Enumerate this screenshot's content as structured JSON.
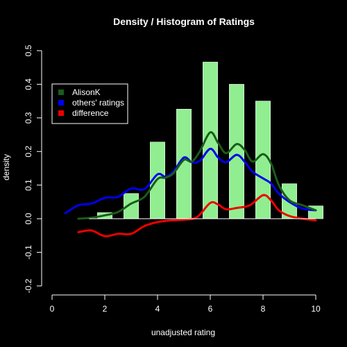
{
  "chart_data": {
    "type": "bar",
    "title": "Density / Histogram of Ratings",
    "xlabel": "unadjusted rating",
    "ylabel": "density",
    "xlim": [
      0,
      10
    ],
    "ylim": [
      -0.2,
      0.5
    ],
    "x_ticks": [
      0,
      2,
      4,
      6,
      8,
      10
    ],
    "x_tick_labels": [
      "0",
      "2",
      "4",
      "6",
      "8",
      "10"
    ],
    "y_ticks": [
      -0.2,
      -0.1,
      0.0,
      0.1,
      0.2,
      0.3,
      0.4,
      0.5
    ],
    "y_tick_labels": [
      "-0.2",
      "-0.1",
      "0.0",
      "0.1",
      "0.2",
      "0.3",
      "0.4",
      "0.5"
    ],
    "grid": false,
    "legend_position": "top-left",
    "histogram": {
      "color": "#90ee90",
      "bins": [
        {
          "x": 2,
          "value": 0.018
        },
        {
          "x": 3,
          "value": 0.075
        },
        {
          "x": 4,
          "value": 0.228
        },
        {
          "x": 5,
          "value": 0.326
        },
        {
          "x": 6,
          "value": 0.466
        },
        {
          "x": 7,
          "value": 0.4
        },
        {
          "x": 8,
          "value": 0.35
        },
        {
          "x": 9,
          "value": 0.104
        },
        {
          "x": 10,
          "value": 0.038
        }
      ]
    },
    "series": [
      {
        "name": "AlisonK",
        "color": "#1a5c1a",
        "points": [
          [
            1.0,
            0.0
          ],
          [
            1.5,
            0.003
          ],
          [
            2.0,
            0.01
          ],
          [
            2.5,
            0.02
          ],
          [
            3.0,
            0.045
          ],
          [
            3.5,
            0.065
          ],
          [
            4.0,
            0.118
          ],
          [
            4.3,
            0.122
          ],
          [
            4.6,
            0.135
          ],
          [
            5.0,
            0.175
          ],
          [
            5.3,
            0.17
          ],
          [
            5.6,
            0.2
          ],
          [
            6.0,
            0.257
          ],
          [
            6.3,
            0.225
          ],
          [
            6.6,
            0.195
          ],
          [
            7.0,
            0.222
          ],
          [
            7.3,
            0.205
          ],
          [
            7.6,
            0.17
          ],
          [
            8.0,
            0.192
          ],
          [
            8.3,
            0.165
          ],
          [
            8.6,
            0.1
          ],
          [
            9.0,
            0.055
          ],
          [
            9.5,
            0.04
          ],
          [
            10.0,
            0.025
          ]
        ]
      },
      {
        "name": "others' ratings",
        "color": "#0000ee",
        "points": [
          [
            0.5,
            0.016
          ],
          [
            1.0,
            0.04
          ],
          [
            1.5,
            0.045
          ],
          [
            2.0,
            0.062
          ],
          [
            2.5,
            0.065
          ],
          [
            3.0,
            0.09
          ],
          [
            3.5,
            0.088
          ],
          [
            4.0,
            0.132
          ],
          [
            4.3,
            0.125
          ],
          [
            4.6,
            0.14
          ],
          [
            5.0,
            0.182
          ],
          [
            5.3,
            0.168
          ],
          [
            5.6,
            0.172
          ],
          [
            6.0,
            0.208
          ],
          [
            6.3,
            0.182
          ],
          [
            6.6,
            0.168
          ],
          [
            7.0,
            0.19
          ],
          [
            7.3,
            0.17
          ],
          [
            7.6,
            0.14
          ],
          [
            8.0,
            0.12
          ],
          [
            8.3,
            0.105
          ],
          [
            8.6,
            0.075
          ],
          [
            9.0,
            0.05
          ],
          [
            9.5,
            0.03
          ],
          [
            10.0,
            0.025
          ]
        ]
      },
      {
        "name": "difference",
        "color": "#ee0000",
        "points": [
          [
            1.0,
            -0.04
          ],
          [
            1.5,
            -0.035
          ],
          [
            2.0,
            -0.052
          ],
          [
            2.5,
            -0.045
          ],
          [
            3.0,
            -0.045
          ],
          [
            3.5,
            -0.022
          ],
          [
            4.0,
            -0.01
          ],
          [
            4.5,
            -0.005
          ],
          [
            5.0,
            -0.003
          ],
          [
            5.5,
            0.005
          ],
          [
            6.0,
            0.047
          ],
          [
            6.3,
            0.042
          ],
          [
            6.6,
            0.028
          ],
          [
            7.0,
            0.032
          ],
          [
            7.5,
            0.04
          ],
          [
            8.0,
            0.07
          ],
          [
            8.3,
            0.055
          ],
          [
            8.6,
            0.025
          ],
          [
            9.0,
            0.008
          ],
          [
            9.5,
            0.0
          ],
          [
            10.0,
            -0.005
          ]
        ]
      }
    ]
  }
}
